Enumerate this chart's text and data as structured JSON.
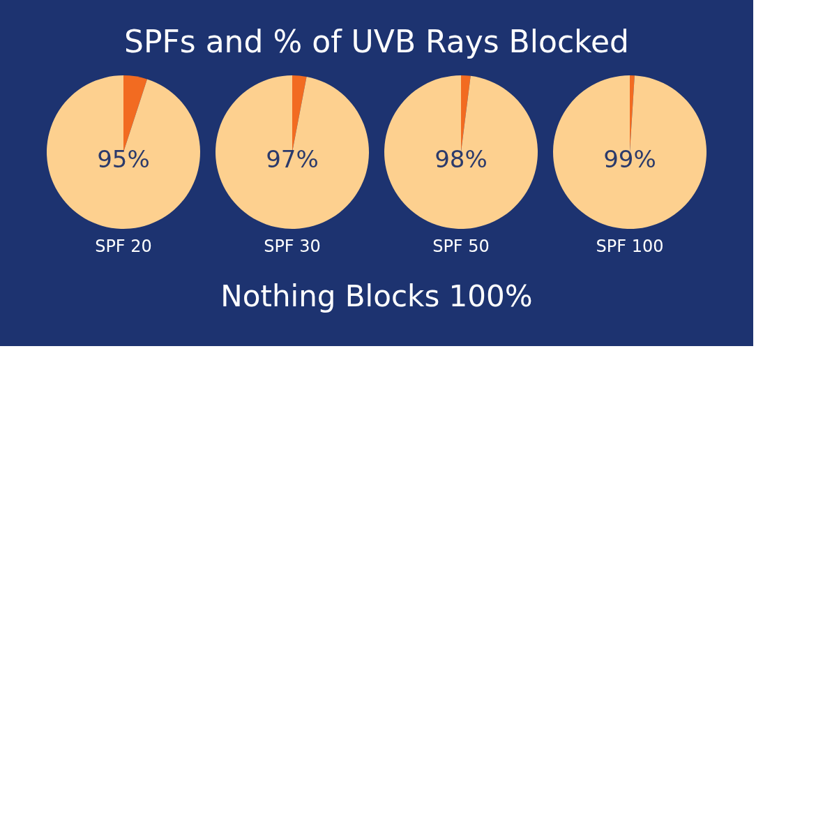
{
  "chart_data": [
    {
      "type": "pie",
      "title": "SPFs and % of UVB Rays Blocked",
      "xlabel": "SPF 20",
      "categories": [
        null,
        null
      ],
      "values": [
        5,
        95
      ],
      "colors": [
        "#f26b21",
        "#fdd08f"
      ],
      "value_labels": [
        null,
        "95%"
      ],
      "annotations": [
        "Nothing Blocks 100%"
      ]
    },
    {
      "type": "pie",
      "xlabel": "SPF 30",
      "categories": [
        null,
        null
      ],
      "values": [
        3,
        97
      ],
      "colors": [
        "#f26b21",
        "#fdd08f"
      ],
      "value_labels": [
        null,
        "97%"
      ]
    },
    {
      "type": "pie",
      "xlabel": "SPF 50",
      "categories": [
        null,
        null
      ],
      "values": [
        2,
        98
      ],
      "colors": [
        "#f26b21",
        "#fdd08f"
      ],
      "value_labels": [
        null,
        "98%"
      ]
    },
    {
      "type": "pie",
      "xlabel": "SPF 100",
      "categories": [
        null,
        null
      ],
      "values": [
        1,
        99
      ],
      "colors": [
        "#f26b21",
        "#fdd08f"
      ],
      "value_labels": [
        null,
        "99%"
      ]
    }
  ]
}
